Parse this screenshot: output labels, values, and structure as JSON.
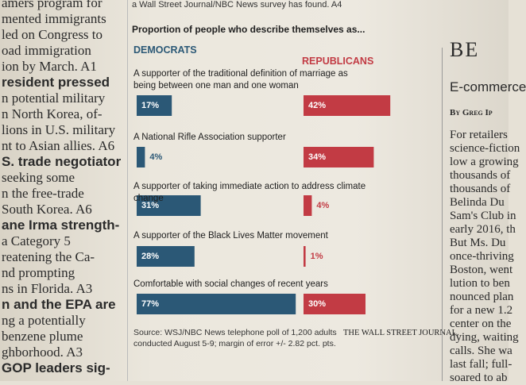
{
  "chart_data": {
    "type": "paired-bar",
    "kicker": "a Wall Street Journal/NBC News survey has found. A4",
    "title": "Proportion of people who describe themselves as...",
    "categories": [
      "A supporter of the traditional definition of marriage as being between one man and one woman",
      "A National Rifle Association supporter",
      "A supporter of taking immediate action to address climate change",
      "A supporter of the Black Lives Matter movement",
      "Comfortable with social changes of recent years"
    ],
    "series": [
      {
        "name": "DEMOCRATS",
        "color": "#2b5876",
        "values": [
          17,
          4,
          31,
          28,
          77
        ],
        "value_labels": [
          "17%",
          "4%",
          "31%",
          "28%",
          "77%"
        ]
      },
      {
        "name": "REPUBLICANS",
        "color": "#c23b44",
        "values": [
          42,
          34,
          4,
          1,
          30
        ],
        "value_labels": [
          "42%",
          "34%",
          "4%",
          "1%",
          "30%"
        ]
      }
    ],
    "source": "Source: WSJ/NBC News telephone poll of 1,200 adults conducted August 5-9; margin of error +/- 2.82 pct. pts.",
    "credit": "THE WALL STREET JOURNAL."
  },
  "left_column": {
    "lines": [
      "amers program for",
      "mented immigrants",
      "led on Congress to",
      "oad immigration",
      "ion by March. A1",
      "resident pressed",
      "n potential military",
      "n North Korea, of-",
      "lions in U.S. military",
      "nt to Asian allies. A6",
      "S. trade negotiator",
      "seeking some",
      "n the free-trade",
      "South Korea. A6",
      "ane Irma strength-",
      "a Category 5",
      "reatening the Ca-",
      "nd prompting",
      "ns in Florida. A3",
      "n and the EPA are",
      "ng a potentially",
      "benzene plume",
      "ghborhood. A3",
      "GOP leaders sig-"
    ]
  },
  "right_column": {
    "masthead": "BE",
    "headline": "E-commerce",
    "byline": "By Greg Ip",
    "lines": [
      "For retailers",
      "science-fiction",
      "low a growing",
      "thousands of",
      "thousands of",
      "Belinda Du",
      "Sam's Club in",
      "early 2016, th",
      "But Ms. Du",
      "once-thriving",
      "Boston, went",
      "lution to ben",
      "nounced plan",
      "for a new 1.2",
      "center on the",
      "dying, waiting",
      "calls. She wa",
      "last fall; full-",
      "soared to ab"
    ]
  }
}
